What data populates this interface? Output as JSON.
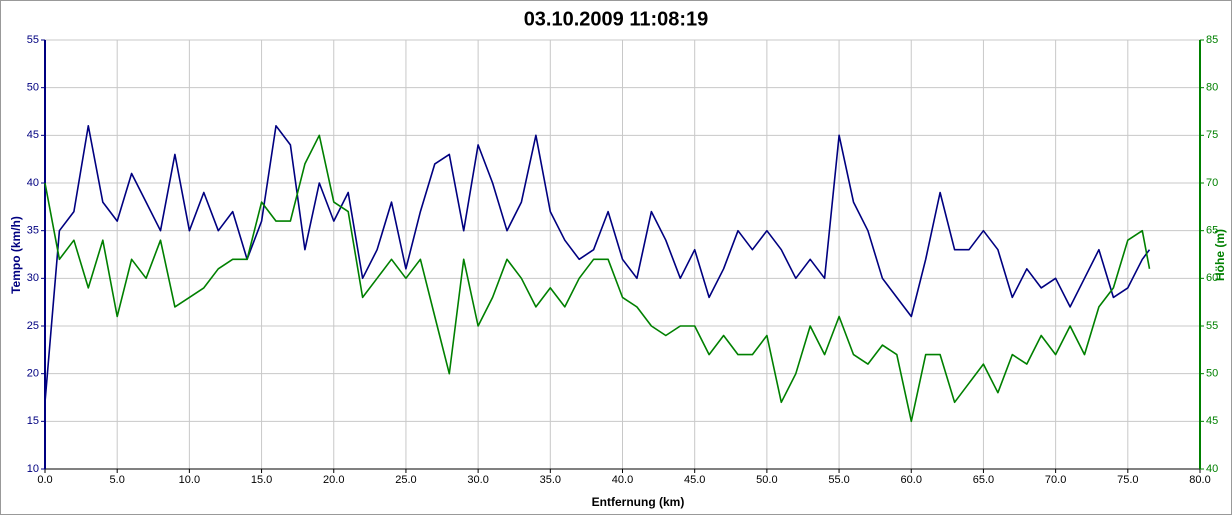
{
  "chart_data": {
    "type": "line",
    "title": "03.10.2009 11:08:19",
    "x_label": "Entfernung (km)",
    "y_label": "Tempo (km/h)",
    "y2_label": "Höhe (m)",
    "x": [
      0,
      1,
      2,
      3,
      4,
      5,
      6,
      7,
      8,
      9,
      10,
      11,
      12,
      13,
      14,
      15,
      16,
      17,
      18,
      19,
      20,
      21,
      22,
      23,
      24,
      25,
      26,
      27,
      28,
      29,
      30,
      31,
      32,
      33,
      34,
      35,
      36,
      37,
      38,
      39,
      40,
      41,
      42,
      43,
      44,
      45,
      46,
      47,
      48,
      49,
      50,
      51,
      52,
      53,
      54,
      55,
      56,
      57,
      58,
      59,
      60,
      61,
      62,
      63,
      64,
      65,
      66,
      67,
      68,
      69,
      70,
      71,
      72,
      73,
      74,
      75,
      76,
      76.5
    ],
    "series": [
      {
        "name": "Tempo (km/h)",
        "color": "#000080",
        "axis": "y",
        "values": [
          17,
          35,
          37,
          46,
          38,
          36,
          41,
          38,
          35,
          43,
          35,
          39,
          35,
          37,
          32,
          36,
          46,
          44,
          33,
          40,
          36,
          39,
          30,
          33,
          38,
          31,
          37,
          42,
          43,
          35,
          44,
          40,
          35,
          38,
          45,
          37,
          34,
          32,
          33,
          37,
          32,
          30,
          37,
          34,
          30,
          33,
          28,
          31,
          35,
          33,
          35,
          33,
          30,
          32,
          30,
          45,
          38,
          35,
          30,
          28,
          26,
          32,
          39,
          33,
          33,
          35,
          33,
          28,
          31,
          29,
          30,
          27,
          30,
          33,
          28,
          29,
          32,
          33
        ]
      },
      {
        "name": "Höhe (m)",
        "color": "#008000",
        "axis": "y2",
        "values": [
          70,
          62,
          64,
          59,
          64,
          56,
          62,
          60,
          64,
          57,
          58,
          59,
          61,
          62,
          62,
          68,
          66,
          66,
          72,
          75,
          68,
          67,
          58,
          60,
          62,
          60,
          62,
          56,
          50,
          62,
          55,
          58,
          62,
          60,
          57,
          59,
          57,
          60,
          62,
          62,
          58,
          57,
          55,
          54,
          55,
          55,
          52,
          54,
          52,
          52,
          54,
          47,
          50,
          55,
          52,
          56,
          52,
          51,
          53,
          52,
          45,
          52,
          52,
          47,
          49,
          51,
          48,
          52,
          51,
          54,
          52,
          55,
          52,
          57,
          59,
          64,
          65,
          61
        ]
      }
    ],
    "xlim": [
      0,
      80
    ],
    "xticks": [
      {
        "value": 0,
        "label": "0.0"
      },
      {
        "value": 5,
        "label": "5.0"
      },
      {
        "value": 10,
        "label": "10.0"
      },
      {
        "value": 15,
        "label": "15.0"
      },
      {
        "value": 20,
        "label": "20.0"
      },
      {
        "value": 25,
        "label": "25.0"
      },
      {
        "value": 30,
        "label": "30.0"
      },
      {
        "value": 35,
        "label": "35.0"
      },
      {
        "value": 40,
        "label": "40.0"
      },
      {
        "value": 45,
        "label": "45.0"
      },
      {
        "value": 50,
        "label": "50.0"
      },
      {
        "value": 55,
        "label": "55.0"
      },
      {
        "value": 60,
        "label": "60.0"
      },
      {
        "value": 65,
        "label": "65.0"
      },
      {
        "value": 70,
        "label": "70.0"
      },
      {
        "value": 75,
        "label": "75.0"
      },
      {
        "value": 80,
        "label": "80.0"
      }
    ],
    "ylim": [
      10,
      55
    ],
    "yticks": [
      10,
      15,
      20,
      25,
      30,
      35,
      40,
      45,
      50,
      55
    ],
    "y2lim": [
      40,
      85
    ],
    "y2ticks": [
      40,
      45,
      50,
      55,
      60,
      65,
      70,
      75,
      80,
      85
    ],
    "grid": true
  }
}
